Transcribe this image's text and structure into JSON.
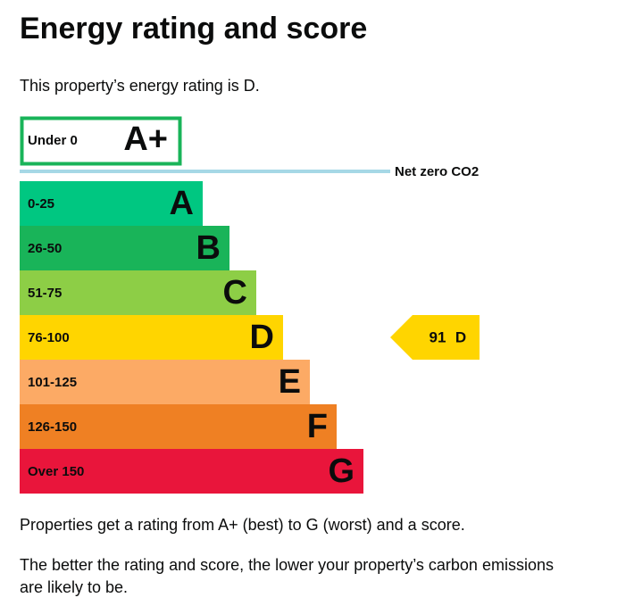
{
  "header": {
    "title": "Energy rating and score"
  },
  "intro": "This property’s energy rating is D.",
  "top_band": {
    "range": "Under 0",
    "rating": "A+"
  },
  "net_zero_label": "Net zero CO2",
  "bands": [
    {
      "range": "0-25",
      "rating": "A"
    },
    {
      "range": "26-50",
      "rating": "B"
    },
    {
      "range": "51-75",
      "rating": "C"
    },
    {
      "range": "76-100",
      "rating": "D"
    },
    {
      "range": "101-125",
      "rating": "E"
    },
    {
      "range": "126-150",
      "rating": "F"
    },
    {
      "range": "Over 150",
      "rating": "G"
    }
  ],
  "current": {
    "score": "91",
    "rating": "D"
  },
  "notes": [
    "Properties get a rating from A+ (best) to G (worst) and a score.",
    "The better the rating and score, the lower your property’s carbon emissions",
    "are likely to be."
  ]
}
